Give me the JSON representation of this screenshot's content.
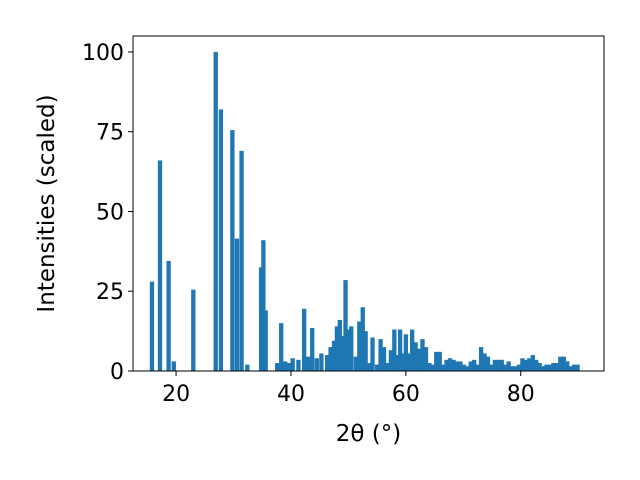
{
  "chart_data": {
    "type": "bar",
    "title": "",
    "xlabel": "2θ (°)",
    "ylabel": "Intensities (scaled)",
    "xlim": [
      12.5,
      94.5
    ],
    "ylim": [
      0,
      105
    ],
    "x_ticks": [
      20,
      40,
      60,
      80
    ],
    "y_ticks": [
      0,
      25,
      50,
      75,
      100
    ],
    "grid": false,
    "bar_width": 0.75,
    "bar_color": "#1f77b4",
    "x": [
      15.8,
      17.2,
      18.7,
      19.6,
      23.0,
      26.9,
      27.8,
      29.8,
      30.6,
      31.4,
      32.4,
      34.8,
      35.2,
      35.6,
      37.6,
      38.3,
      39.0,
      39.7,
      40.3,
      41.3,
      42.3,
      43.0,
      43.7,
      44.5,
      45.3,
      46.3,
      46.9,
      47.5,
      48.0,
      48.5,
      49.0,
      49.5,
      50.0,
      50.5,
      51.3,
      51.9,
      52.5,
      53.0,
      53.6,
      54.2,
      55.0,
      55.6,
      56.2,
      56.8,
      57.4,
      58.0,
      58.5,
      59.0,
      59.5,
      60.0,
      60.5,
      61.1,
      61.7,
      62.3,
      62.9,
      63.5,
      64.1,
      64.7,
      65.3,
      65.9,
      66.5,
      67.1,
      67.7,
      68.3,
      68.9,
      69.5,
      70.1,
      70.7,
      71.3,
      71.9,
      72.5,
      73.1,
      73.7,
      74.3,
      74.9,
      75.5,
      76.1,
      76.7,
      77.3,
      77.9,
      78.5,
      79.1,
      79.7,
      80.3,
      80.9,
      81.5,
      82.1,
      82.7,
      83.3,
      83.9,
      84.5,
      85.1,
      85.7,
      86.3,
      86.9,
      87.5,
      88.1,
      88.7,
      89.3,
      89.9
    ],
    "values": [
      28,
      66,
      34.5,
      3,
      25.5,
      100,
      82,
      75.5,
      41.5,
      69,
      2,
      32.5,
      41,
      19,
      2.5,
      15,
      3,
      2.5,
      4,
      3.5,
      19.5,
      4.5,
      13.5,
      4,
      5.5,
      5,
      7.5,
      9.5,
      14,
      16,
      11,
      28.5,
      13,
      14,
      4.5,
      15.5,
      20,
      12.5,
      2.5,
      10.5,
      2,
      10,
      7.5,
      2.5,
      6.5,
      13,
      5,
      13,
      5.5,
      11.5,
      5.5,
      13,
      9,
      7,
      10,
      7.5,
      2.5,
      2,
      6,
      6,
      2,
      3.5,
      4,
      3.5,
      3,
      3,
      2,
      1.5,
      3,
      3.5,
      2,
      7.5,
      5.5,
      4.5,
      2,
      3.5,
      3.5,
      3.5,
      2,
      3,
      1.5,
      1.5,
      2,
      4,
      3.5,
      4,
      5,
      3.5,
      2.5,
      1.5,
      2,
      2,
      2.5,
      2.5,
      4.5,
      4.5,
      3,
      1.5,
      2,
      2
    ]
  }
}
